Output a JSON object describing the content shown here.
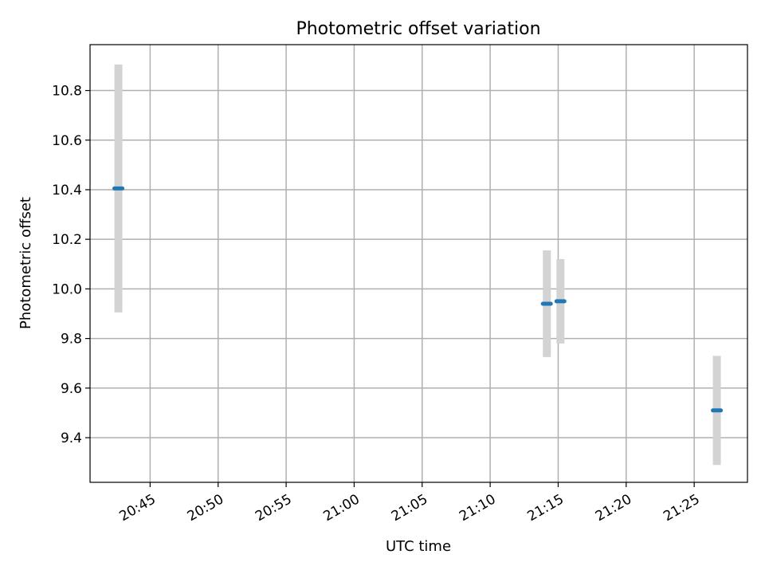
{
  "chart_data": {
    "type": "scatter",
    "title": "Photometric offset variation",
    "xlabel": "UTC time",
    "ylabel": "Photometric offset",
    "grid": true,
    "x_ticks": [
      "20:45",
      "20:50",
      "20:55",
      "21:00",
      "21:05",
      "21:10",
      "21:15",
      "21:20",
      "21:25"
    ],
    "y_ticks": [
      "9.4",
      "9.6",
      "9.8",
      "10.0",
      "10.2",
      "10.4",
      "10.6",
      "10.8"
    ],
    "xlim": [
      "20:40:35",
      "21:28:55"
    ],
    "ylim": [
      9.22,
      10.985
    ],
    "points": [
      {
        "x": "20:42:40",
        "y": 10.405,
        "yerr": 0.5
      },
      {
        "x": "21:14:10",
        "y": 9.94,
        "yerr": 0.215
      },
      {
        "x": "21:15:10",
        "y": 9.95,
        "yerr": 0.17
      },
      {
        "x": "21:26:40",
        "y": 9.51,
        "yerr": 0.22
      }
    ],
    "colors": {
      "marker": "#1f77b4",
      "errorbar": "#d3d3d3"
    }
  }
}
